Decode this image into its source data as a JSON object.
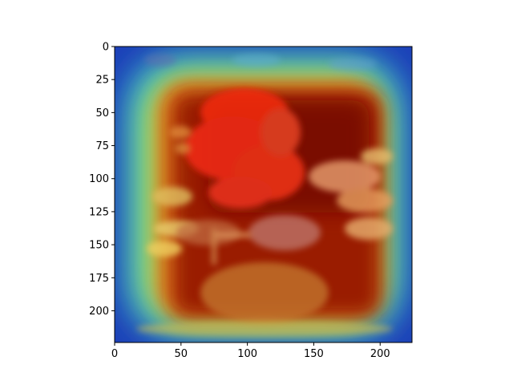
{
  "chart_data": {
    "type": "heatmap",
    "title": "",
    "xlabel": "",
    "ylabel": "",
    "xlim": [
      0,
      224
    ],
    "ylim": [
      224,
      0
    ],
    "x_ticks": [
      0,
      50,
      100,
      150,
      200
    ],
    "y_ticks": [
      0,
      25,
      50,
      75,
      100,
      125,
      150,
      175,
      200
    ],
    "colormap": "jet",
    "grid": false,
    "legend": "none",
    "overlay_image": "vase-with-flowers-painting",
    "activation_regions": [
      {
        "name": "red-flower-cluster",
        "x": [
          65,
          140
        ],
        "y": [
          20,
          105
        ],
        "level": 1.0
      },
      {
        "name": "vase-center",
        "x": [
          60,
          200
        ],
        "y": [
          45,
          205
        ],
        "level": 0.85
      },
      {
        "name": "left-border",
        "x": [
          0,
          20
        ],
        "y": [
          0,
          224
        ],
        "level": 0.15
      },
      {
        "name": "top-left-corner",
        "x": [
          0,
          30
        ],
        "y": [
          0,
          30
        ],
        "level": 0.0
      }
    ],
    "colors": {
      "low": "#00008f",
      "mid": "#7fff7f",
      "high": "#8f0000"
    }
  }
}
